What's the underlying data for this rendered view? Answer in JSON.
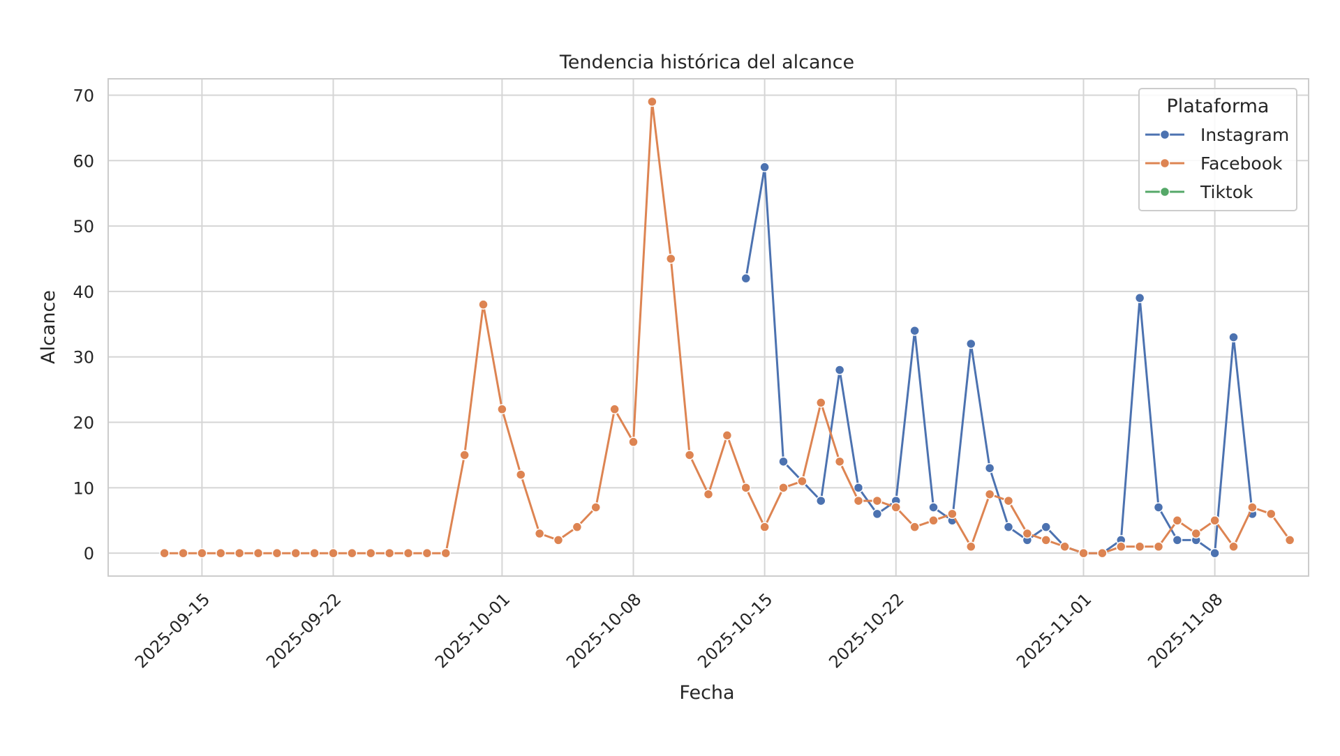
{
  "chart_data": {
    "type": "line",
    "title": "Tendencia histórica del alcance",
    "xlabel": "Fecha",
    "ylabel": "Alcance",
    "xlim": [
      "2025-09-10",
      "2025-11-13"
    ],
    "ylim": [
      -3.5,
      72.5
    ],
    "grid": true,
    "x_ticks": [
      "2025-09-15",
      "2025-09-22",
      "2025-10-01",
      "2025-10-08",
      "2025-10-15",
      "2025-10-22",
      "2025-11-01",
      "2025-11-08"
    ],
    "y_ticks": [
      0,
      10,
      20,
      30,
      40,
      50,
      60,
      70
    ],
    "legend": {
      "title": "Plataforma",
      "position": "top-right"
    },
    "series": [
      {
        "name": "Instagram",
        "color": "#4c72b0",
        "points": [
          [
            "2025-10-14",
            42
          ],
          [
            "2025-10-15",
            59
          ],
          [
            "2025-10-16",
            14
          ],
          [
            "2025-10-17",
            11
          ],
          [
            "2025-10-18",
            8
          ],
          [
            "2025-10-19",
            28
          ],
          [
            "2025-10-20",
            10
          ],
          [
            "2025-10-21",
            6
          ],
          [
            "2025-10-22",
            8
          ],
          [
            "2025-10-23",
            34
          ],
          [
            "2025-10-24",
            7
          ],
          [
            "2025-10-25",
            5
          ],
          [
            "2025-10-26",
            32
          ],
          [
            "2025-10-27",
            13
          ],
          [
            "2025-10-28",
            4
          ],
          [
            "2025-10-29",
            2
          ],
          [
            "2025-10-30",
            4
          ],
          [
            "2025-10-31",
            1
          ],
          [
            "2025-11-01",
            0
          ],
          [
            "2025-11-02",
            0
          ],
          [
            "2025-11-03",
            2
          ],
          [
            "2025-11-04",
            39
          ],
          [
            "2025-11-05",
            7
          ],
          [
            "2025-11-06",
            2
          ],
          [
            "2025-11-07",
            2
          ],
          [
            "2025-11-08",
            0
          ],
          [
            "2025-11-09",
            33
          ],
          [
            "2025-11-10",
            6
          ]
        ]
      },
      {
        "name": "Facebook",
        "color": "#dd8452",
        "points": [
          [
            "2025-09-13",
            0
          ],
          [
            "2025-09-14",
            0
          ],
          [
            "2025-09-15",
            0
          ],
          [
            "2025-09-16",
            0
          ],
          [
            "2025-09-17",
            0
          ],
          [
            "2025-09-18",
            0
          ],
          [
            "2025-09-19",
            0
          ],
          [
            "2025-09-20",
            0
          ],
          [
            "2025-09-21",
            0
          ],
          [
            "2025-09-22",
            0
          ],
          [
            "2025-09-23",
            0
          ],
          [
            "2025-09-24",
            0
          ],
          [
            "2025-09-25",
            0
          ],
          [
            "2025-09-26",
            0
          ],
          [
            "2025-09-27",
            0
          ],
          [
            "2025-09-28",
            0
          ],
          [
            "2025-09-29",
            15
          ],
          [
            "2025-09-30",
            38
          ],
          [
            "2025-10-01",
            22
          ],
          [
            "2025-10-02",
            12
          ],
          [
            "2025-10-03",
            3
          ],
          [
            "2025-10-04",
            2
          ],
          [
            "2025-10-05",
            4
          ],
          [
            "2025-10-06",
            7
          ],
          [
            "2025-10-07",
            22
          ],
          [
            "2025-10-08",
            17
          ],
          [
            "2025-10-09",
            69
          ],
          [
            "2025-10-10",
            45
          ],
          [
            "2025-10-11",
            15
          ],
          [
            "2025-10-12",
            9
          ],
          [
            "2025-10-13",
            18
          ],
          [
            "2025-10-14",
            10
          ],
          [
            "2025-10-15",
            4
          ],
          [
            "2025-10-16",
            10
          ],
          [
            "2025-10-17",
            11
          ],
          [
            "2025-10-18",
            23
          ],
          [
            "2025-10-19",
            14
          ],
          [
            "2025-10-20",
            8
          ],
          [
            "2025-10-21",
            8
          ],
          [
            "2025-10-22",
            7
          ],
          [
            "2025-10-23",
            4
          ],
          [
            "2025-10-24",
            5
          ],
          [
            "2025-10-25",
            6
          ],
          [
            "2025-10-26",
            1
          ],
          [
            "2025-10-27",
            9
          ],
          [
            "2025-10-28",
            8
          ],
          [
            "2025-10-29",
            3
          ],
          [
            "2025-10-30",
            2
          ],
          [
            "2025-10-31",
            1
          ],
          [
            "2025-11-01",
            0
          ],
          [
            "2025-11-02",
            0
          ],
          [
            "2025-11-03",
            1
          ],
          [
            "2025-11-04",
            1
          ],
          [
            "2025-11-05",
            1
          ],
          [
            "2025-11-06",
            5
          ],
          [
            "2025-11-07",
            3
          ],
          [
            "2025-11-08",
            5
          ],
          [
            "2025-11-09",
            1
          ],
          [
            "2025-11-10",
            7
          ],
          [
            "2025-11-11",
            6
          ],
          [
            "2025-11-12",
            2
          ]
        ]
      },
      {
        "name": "Tiktok",
        "color": "#55a868",
        "points": []
      }
    ]
  }
}
